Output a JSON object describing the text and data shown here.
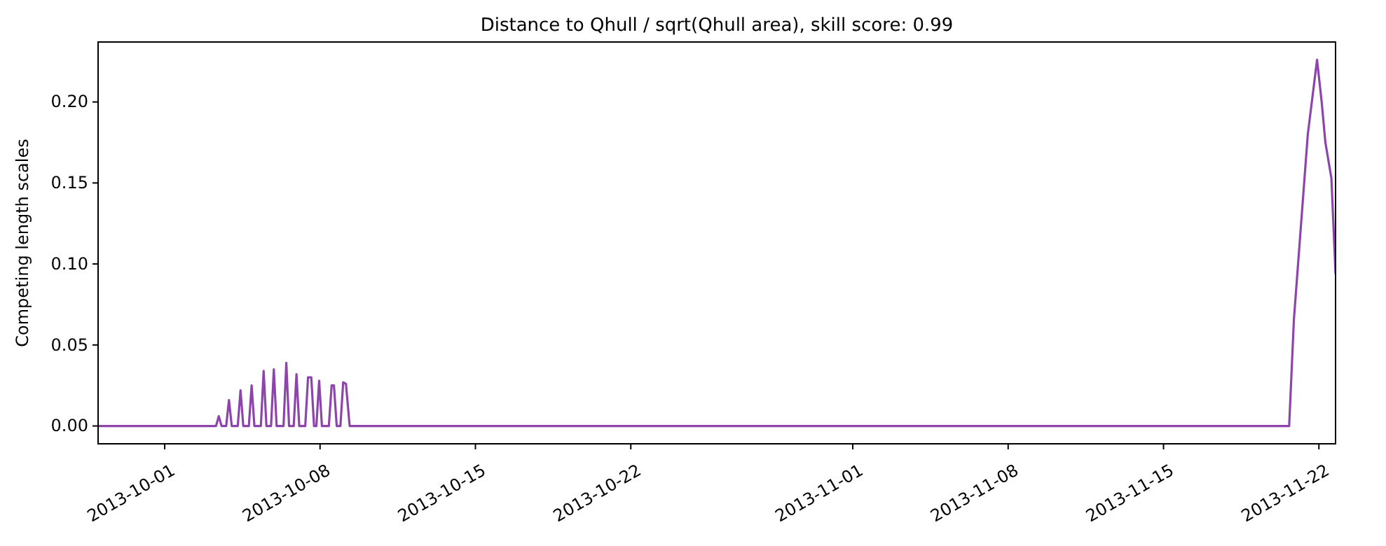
{
  "chart_data": {
    "type": "line",
    "title": "Distance to Qhull / sqrt(Qhull area), skill score: 0.99",
    "ylabel": "Competing length scales",
    "x": [
      "2013-09-28",
      "2013-10-03T07:30",
      "2013-10-03T10:30",
      "2013-10-03T13:30",
      "2013-10-03T18:30",
      "2013-10-03T21:30",
      "2013-10-04T00:30",
      "2013-10-04T07:00",
      "2013-10-04T10:00",
      "2013-10-04T13:00",
      "2013-10-04T19:00",
      "2013-10-04T22:00",
      "2013-10-05T01:00",
      "2013-10-05T08:00",
      "2013-10-05T11:00",
      "2013-10-05T14:00",
      "2013-10-05T19:00",
      "2013-10-05T22:00",
      "2013-10-06T01:00",
      "2013-10-06T08:30",
      "2013-10-06T11:30",
      "2013-10-06T14:30",
      "2013-10-06T19:30",
      "2013-10-06T22:30",
      "2013-10-07T01:30",
      "2013-10-07T08:00",
      "2013-10-07T11:00",
      "2013-10-07T14:30",
      "2013-10-07T17:30",
      "2013-10-07T20:00",
      "2013-10-07T23:00",
      "2013-10-08T02:00",
      "2013-10-08T09:30",
      "2013-10-08T12:30",
      "2013-10-08T15:00",
      "2013-10-08T18:00",
      "2013-10-08T22:00",
      "2013-10-09T01:00",
      "2013-10-09T04:00",
      "2013-10-09T08:00",
      "2013-11-20T15:50",
      "2013-11-20T21:00",
      "2013-11-21T12:00",
      "2013-11-21T22:00",
      "2013-11-22T03:00",
      "2013-11-22T07:00",
      "2013-11-22T13:30",
      "2013-11-22T18:00"
    ],
    "series": [
      {
        "color": "#8e44ad",
        "values": [
          0,
          0,
          0.006,
          0,
          0,
          0.016,
          0,
          0,
          0.022,
          0,
          0,
          0.025,
          0,
          0,
          0.034,
          0,
          0,
          0.035,
          0,
          0,
          0.039,
          0,
          0,
          0.032,
          0,
          0,
          0.03,
          0.03,
          0,
          0,
          0.028,
          0,
          0,
          0.025,
          0.025,
          0,
          0,
          0.027,
          0.026,
          0,
          0,
          0.066,
          0.18,
          0.226,
          0.2,
          0.175,
          0.153,
          0.094
        ]
      }
    ],
    "xlim": [
      "2013-09-28",
      "2013-11-22T18:00"
    ],
    "xticks": [
      "2013-10-01",
      "2013-10-08",
      "2013-10-15",
      "2013-10-22",
      "2013-11-01",
      "2013-11-08",
      "2013-11-15",
      "2013-11-22"
    ],
    "ylim": [
      -0.011,
      0.237
    ],
    "yticks": [
      {
        "value": 0,
        "label": "0.00"
      },
      {
        "value": 0.05,
        "label": "0.05"
      },
      {
        "value": 0.1,
        "label": "0.10"
      },
      {
        "value": 0.15,
        "label": "0.15"
      },
      {
        "value": 0.2,
        "label": "0.20"
      }
    ],
    "grid": false,
    "line_style": "solid",
    "marker": "none"
  }
}
